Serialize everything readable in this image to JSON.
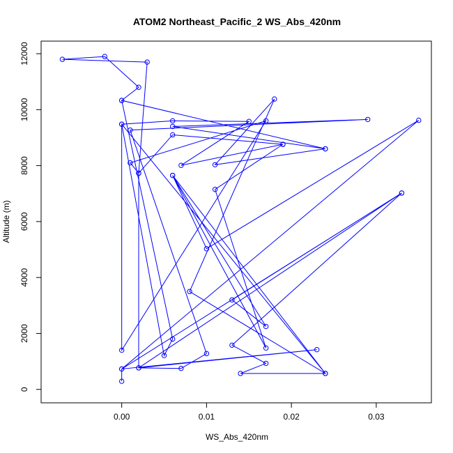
{
  "chart_data": {
    "type": "line",
    "markers": "open-circle",
    "title": "ATOM2 Northeast_Pacific_2 WS_Abs_420nm",
    "xlabel": "WS_Abs_420nm",
    "ylabel": "Altitude (m)",
    "xlim": [
      -0.0095,
      0.0365
    ],
    "ylim": [
      -480,
      12450
    ],
    "x_ticks": [
      0.0,
      0.01,
      0.02,
      0.03
    ],
    "x_tick_labels": [
      "0.00",
      "0.01",
      "0.02",
      "0.03"
    ],
    "y_ticks": [
      0,
      2000,
      4000,
      6000,
      8000,
      10000,
      12000
    ],
    "y_tick_labels": [
      "0",
      "2000",
      "4000",
      "6000",
      "8000",
      "10000",
      "12000"
    ],
    "grid": false,
    "series": [
      {
        "color": "#0000ff",
        "points": [
          {
            "x": 0.0,
            "y": 290
          },
          {
            "x": 0.0,
            "y": 730
          },
          {
            "x": 0.023,
            "y": 1420
          },
          {
            "x": 0.002,
            "y": 770
          },
          {
            "x": 0.033,
            "y": 7020
          },
          {
            "x": 0.013,
            "y": 3200
          },
          {
            "x": 0.017,
            "y": 2250
          },
          {
            "x": 0.006,
            "y": 7650
          },
          {
            "x": 0.024,
            "y": 570
          },
          {
            "x": 0.0,
            "y": 9480
          },
          {
            "x": 0.0,
            "y": 1400
          },
          {
            "x": 0.017,
            "y": 9600
          },
          {
            "x": 0.001,
            "y": 8100
          },
          {
            "x": 0.002,
            "y": 7730
          },
          {
            "x": 0.002,
            "y": 770
          },
          {
            "x": 0.007,
            "y": 750
          },
          {
            "x": 0.01,
            "y": 1280
          },
          {
            "x": 0.001,
            "y": 9270
          },
          {
            "x": 0.029,
            "y": 9650
          },
          {
            "x": 0.006,
            "y": 9400
          },
          {
            "x": 0.024,
            "y": 8600
          },
          {
            "x": 0.0,
            "y": 10330
          },
          {
            "x": 0.006,
            "y": 1800
          },
          {
            "x": 0.005,
            "y": 1210
          },
          {
            "x": 0.0,
            "y": 9480
          },
          {
            "x": 0.006,
            "y": 9600
          },
          {
            "x": 0.015,
            "y": 9580
          },
          {
            "x": 0.007,
            "y": 8010
          },
          {
            "x": 0.019,
            "y": 8760
          },
          {
            "x": 0.006,
            "y": 9100
          },
          {
            "x": 0.002,
            "y": 7730
          },
          {
            "x": 0.003,
            "y": 11700
          },
          {
            "x": -0.007,
            "y": 11800
          },
          {
            "x": -0.002,
            "y": 11900
          },
          {
            "x": 0.002,
            "y": 10800
          },
          {
            "x": 0.0,
            "y": 10330
          },
          {
            "x": 0.024,
            "y": 8600
          },
          {
            "x": 0.011,
            "y": 8030
          },
          {
            "x": 0.018,
            "y": 10380
          },
          {
            "x": 0.008,
            "y": 3500
          },
          {
            "x": 0.024,
            "y": 570
          },
          {
            "x": 0.014,
            "y": 570
          },
          {
            "x": 0.017,
            "y": 930
          },
          {
            "x": 0.013,
            "y": 1580
          },
          {
            "x": 0.033,
            "y": 7020
          },
          {
            "x": 0.0,
            "y": 730
          },
          {
            "x": 0.035,
            "y": 9620
          },
          {
            "x": 0.01,
            "y": 5030
          },
          {
            "x": 0.006,
            "y": 7650
          },
          {
            "x": 0.017,
            "y": 1480
          },
          {
            "x": 0.011,
            "y": 7150
          },
          {
            "x": 0.019,
            "y": 8760
          }
        ]
      }
    ]
  }
}
